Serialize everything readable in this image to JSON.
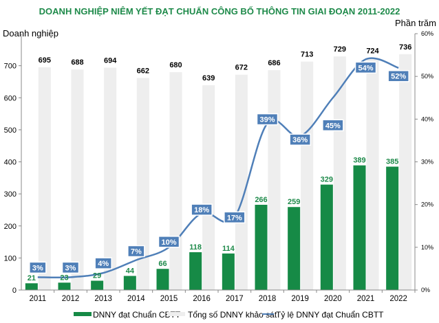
{
  "chart_data": {
    "type": "bar+line",
    "title": "DOANH NGHIỆP NIÊM YẾT ĐẠT CHUẨN CÔNG BỐ THÔNG TIN GIAI ĐOẠN 2011-2022",
    "ylabel": "Doanh nghiệp",
    "y2label": "Phần trăm",
    "categories": [
      "2011",
      "2012",
      "2013",
      "2014",
      "2015",
      "2016",
      "2017",
      "2018",
      "2019",
      "2020",
      "2021",
      "2022"
    ],
    "ylim": [
      0,
      800
    ],
    "yticks": [
      0,
      100,
      200,
      300,
      400,
      500,
      600,
      700
    ],
    "y2lim": [
      0,
      60
    ],
    "y2ticks": [
      "0%",
      "10%",
      "20%",
      "30%",
      "40%",
      "50%",
      "60%"
    ],
    "grid": false,
    "legend_position": "bottom",
    "series": [
      {
        "name": "DNNY đạt Chuẩn CBTT",
        "type": "bar",
        "color": "#168a46",
        "values": [
          21,
          23,
          29,
          44,
          66,
          118,
          114,
          266,
          259,
          329,
          389,
          385
        ]
      },
      {
        "name": "Tổng số DNNY khảo sát",
        "type": "bar",
        "color": "#eeeeee",
        "values": [
          695,
          688,
          694,
          662,
          680,
          639,
          672,
          686,
          713,
          729,
          724,
          736
        ]
      },
      {
        "name": "Tỷ lệ DNNY đạt Chuẩn CBTT",
        "type": "line",
        "axis": "right",
        "color": "#4f7fb8",
        "values": [
          3,
          3,
          4,
          7,
          10,
          18,
          17,
          39,
          36,
          45,
          54,
          52
        ],
        "labels": [
          "3%",
          "3%",
          "4%",
          "7%",
          "10%",
          "18%",
          "17%",
          "39%",
          "36%",
          "45%",
          "54%",
          "52%"
        ]
      }
    ]
  }
}
